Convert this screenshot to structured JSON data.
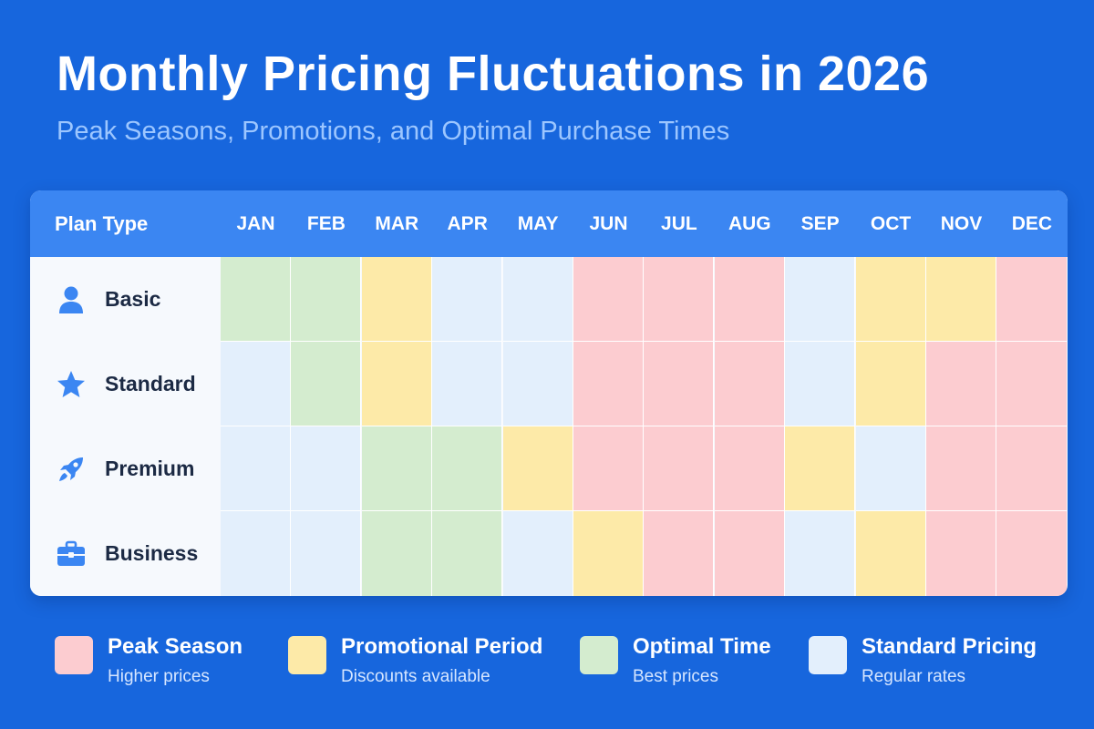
{
  "title": "Monthly Pricing Fluctuations in 2026",
  "subtitle": "Peak Seasons, Promotions, and Optimal Purchase Times",
  "colors": {
    "background": "#1766dd",
    "header": "#3b86f2",
    "peak": "#fcccd0",
    "promo": "#fdeaa8",
    "optimal": "#d4eccf",
    "standard": "#e3effc",
    "icon": "#3b86f2"
  },
  "chart_data": {
    "type": "heatmap",
    "title": "Monthly Pricing Fluctuations in 2026",
    "subtitle": "Peak Seasons, Promotions, and Optimal Purchase Times",
    "row_header": "Plan Type",
    "columns": [
      "JAN",
      "FEB",
      "MAR",
      "APR",
      "MAY",
      "JUN",
      "JUL",
      "AUG",
      "SEP",
      "OCT",
      "NOV",
      "DEC"
    ],
    "rows": [
      {
        "name": "Basic",
        "icon": "user-icon",
        "values": [
          "optimal",
          "optimal",
          "promo",
          "standard",
          "standard",
          "peak",
          "peak",
          "peak",
          "standard",
          "promo",
          "promo",
          "peak"
        ]
      },
      {
        "name": "Standard",
        "icon": "star-icon",
        "values": [
          "standard",
          "optimal",
          "promo",
          "standard",
          "standard",
          "peak",
          "peak",
          "peak",
          "standard",
          "promo",
          "peak",
          "peak"
        ]
      },
      {
        "name": "Premium",
        "icon": "rocket-icon",
        "values": [
          "standard",
          "standard",
          "optimal",
          "optimal",
          "promo",
          "peak",
          "peak",
          "peak",
          "promo",
          "standard",
          "peak",
          "peak"
        ]
      },
      {
        "name": "Business",
        "icon": "briefcase-icon",
        "values": [
          "standard",
          "standard",
          "optimal",
          "optimal",
          "standard",
          "promo",
          "peak",
          "peak",
          "standard",
          "promo",
          "peak",
          "peak"
        ]
      }
    ],
    "legend": [
      {
        "key": "peak",
        "title": "Peak Season",
        "subtitle": "Higher prices"
      },
      {
        "key": "promo",
        "title": "Promotional Period",
        "subtitle": "Discounts available"
      },
      {
        "key": "optimal",
        "title": "Optimal Time",
        "subtitle": "Best prices"
      },
      {
        "key": "standard",
        "title": "Standard Pricing",
        "subtitle": "Regular rates"
      }
    ],
    "legend_position": "bottom"
  }
}
